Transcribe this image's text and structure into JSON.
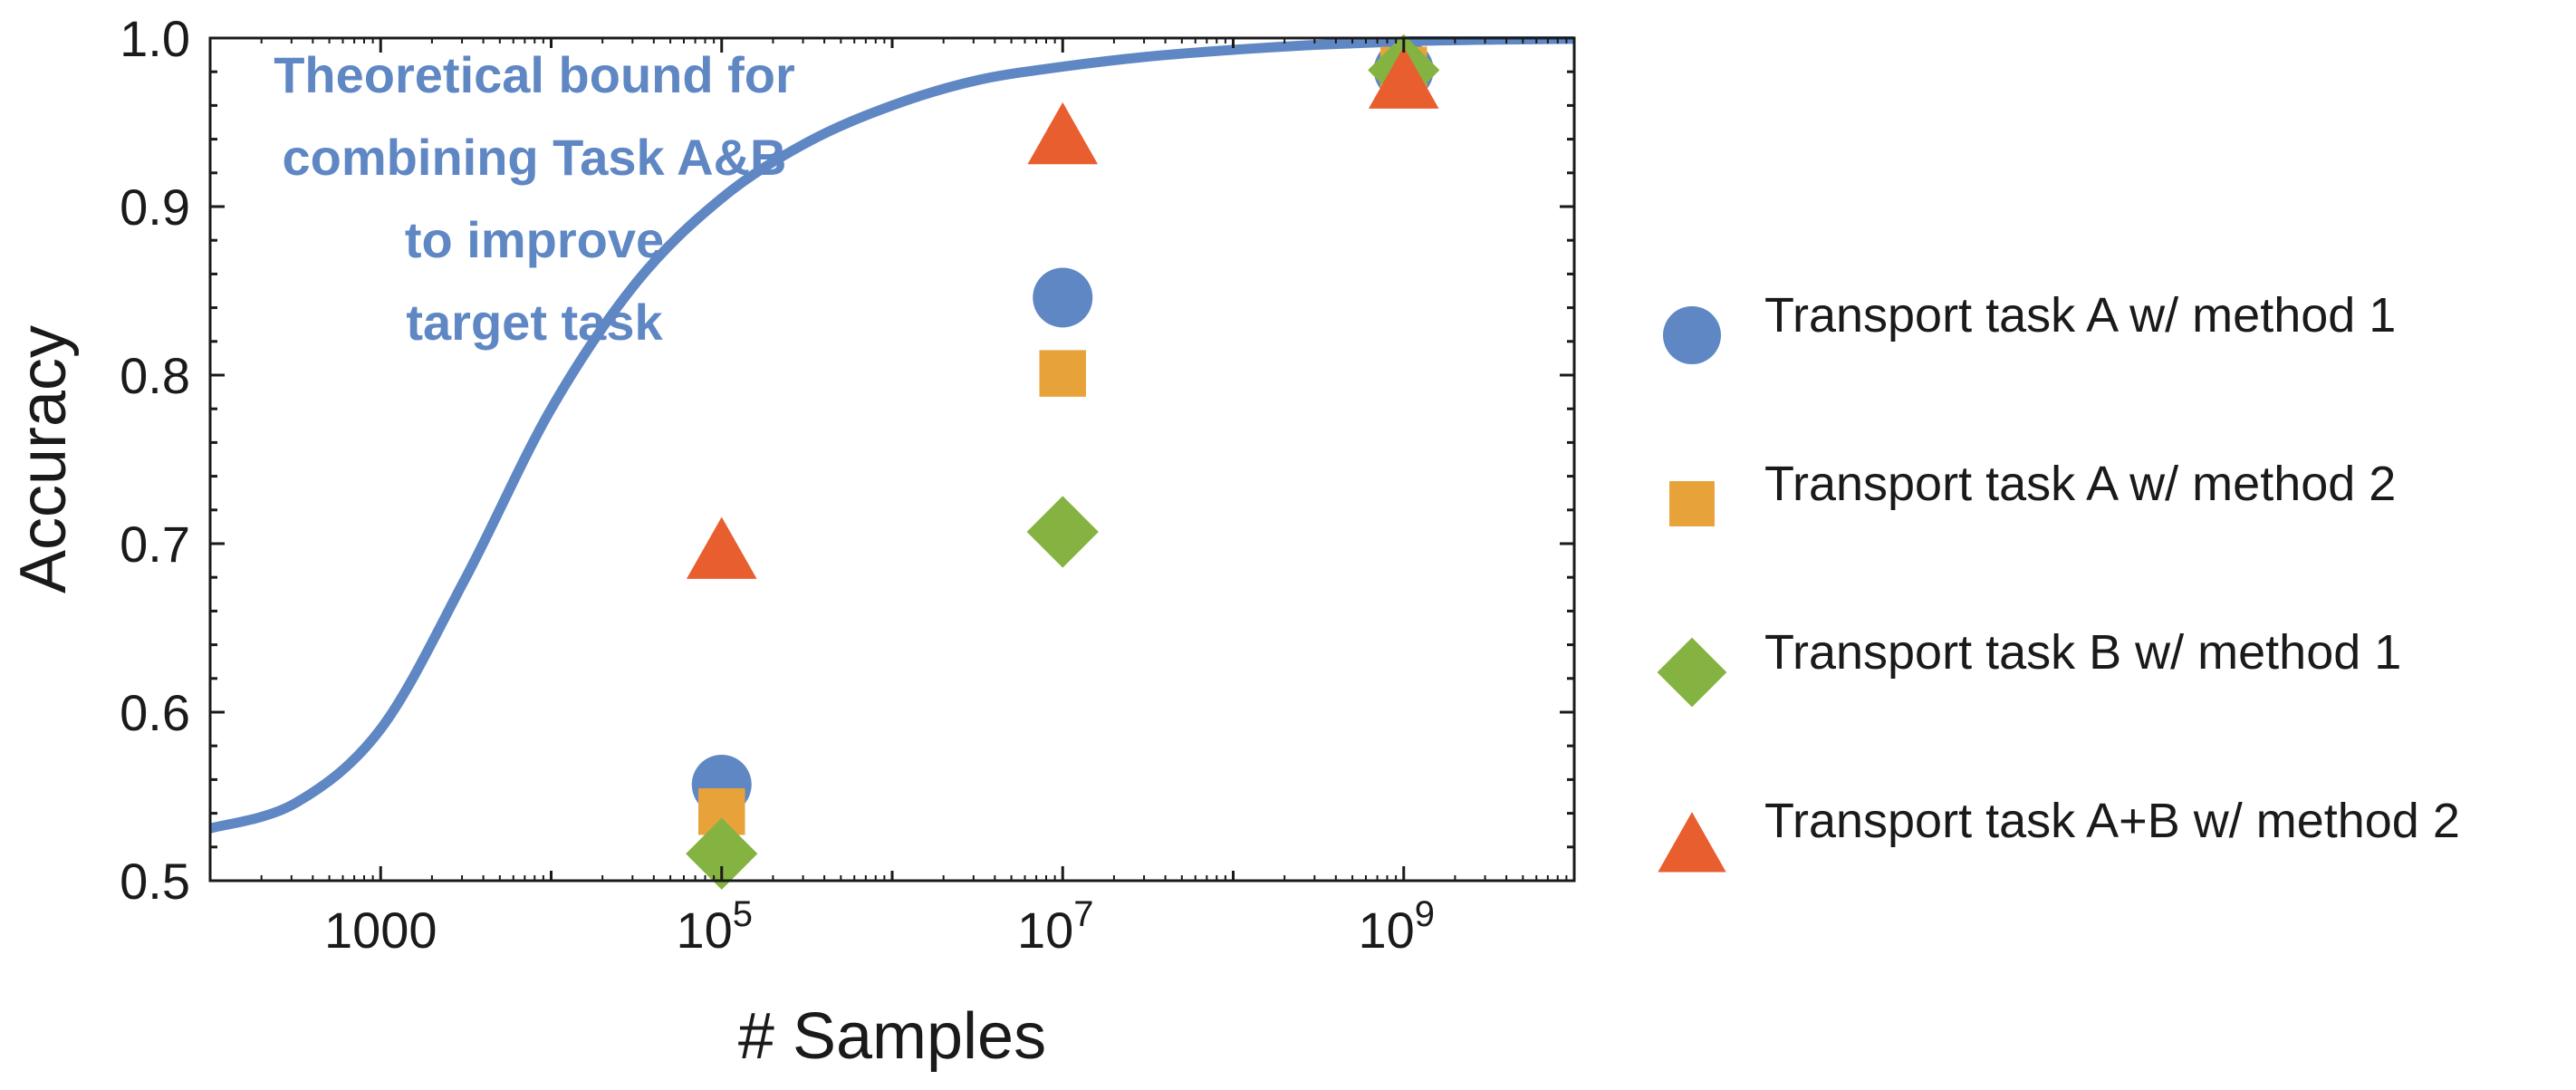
{
  "chart_data": {
    "type": "scatter",
    "title": "",
    "xlabel": "# Samples",
    "ylabel": "Accuracy",
    "x_scale": "log",
    "xlim": [
      100,
      10000000000
    ],
    "ylim": [
      0.5,
      1.0
    ],
    "x_ticks": [
      {
        "value": 1000,
        "label": "1000",
        "base": "",
        "exp": ""
      },
      {
        "value": 100000,
        "label": "10^5",
        "base": "10",
        "exp": "5"
      },
      {
        "value": 10000000,
        "label": "10^7",
        "base": "10",
        "exp": "7"
      },
      {
        "value": 1000000000,
        "label": "10^9",
        "base": "10",
        "exp": "9"
      }
    ],
    "y_ticks": [
      {
        "value": 0.5,
        "label": "0.5"
      },
      {
        "value": 0.6,
        "label": "0.6"
      },
      {
        "value": 0.7,
        "label": "0.7"
      },
      {
        "value": 0.8,
        "label": "0.8"
      },
      {
        "value": 0.9,
        "label": "0.9"
      },
      {
        "value": 1.0,
        "label": "1.0"
      }
    ],
    "grid": false,
    "legend_position": "right",
    "curve": {
      "color": "#5f87c4",
      "points": [
        [
          100,
          0.531
        ],
        [
          316,
          0.546
        ],
        [
          1000,
          0.59
        ],
        [
          3162,
          0.68
        ],
        [
          10000,
          0.78
        ],
        [
          31623,
          0.855
        ],
        [
          100000,
          0.905
        ],
        [
          316228,
          0.938
        ],
        [
          1000000,
          0.96
        ],
        [
          3162278,
          0.975
        ],
        [
          10000000,
          0.983
        ],
        [
          31622777,
          0.989
        ],
        [
          100000000,
          0.993
        ],
        [
          316227766,
          0.996
        ],
        [
          1000000000,
          0.998
        ],
        [
          3162277660,
          0.999
        ],
        [
          10000000000,
          0.9995
        ]
      ]
    },
    "annotation": {
      "lines": [
        "Theoretical bound for",
        "combining Task A&B",
        "to improve",
        "target task"
      ],
      "color": "#5f87c4"
    },
    "series": [
      {
        "name": "Transport task A w/ method 1",
        "marker": "circle",
        "color": "#5f87c4",
        "x": [
          100000,
          10000000,
          1000000000
        ],
        "y": [
          0.557,
          0.846,
          0.981
        ]
      },
      {
        "name": "Transport task A w/ method 2",
        "marker": "square",
        "color": "#e8a23a",
        "x": [
          100000,
          10000000,
          1000000000
        ],
        "y": [
          0.541,
          0.801,
          0.981
        ]
      },
      {
        "name": "Transport task B w/ method 1",
        "marker": "diamond",
        "color": "#84b342",
        "x": [
          100000,
          10000000,
          1000000000
        ],
        "y": [
          0.516,
          0.707,
          0.981
        ]
      },
      {
        "name": "Transport task A+B w/ method 2",
        "marker": "triangle",
        "color": "#e95e2f",
        "x": [
          100000,
          10000000,
          1000000000
        ],
        "y": [
          0.696,
          0.942,
          0.975
        ]
      }
    ]
  }
}
